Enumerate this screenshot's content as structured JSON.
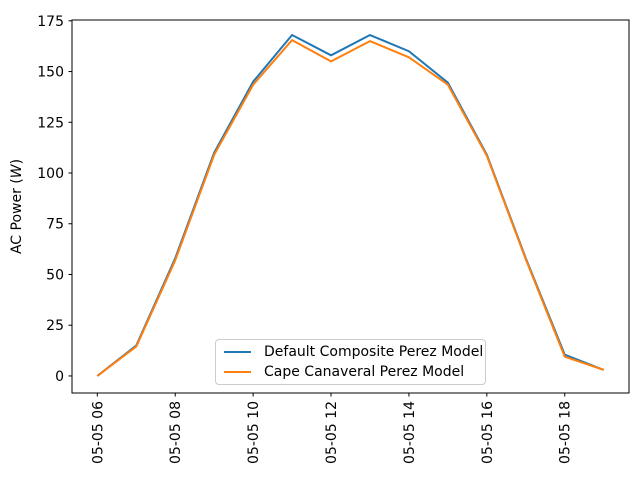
{
  "figure": {
    "background": "#ffffff",
    "ylabel": {
      "prefix": "AC Power (",
      "math": "W",
      "suffix": ")"
    }
  },
  "legend": {
    "items": [
      {
        "label": "Default Composite Perez Model",
        "color": "#1f77b4"
      },
      {
        "label": "Cape Canaveral Perez Model",
        "color": "#ff7f0e"
      }
    ]
  },
  "chart_data": {
    "type": "line",
    "title": "",
    "xlabel": "",
    "ylabel": "AC Power (W)",
    "grid": false,
    "legend_position": "lower center (inside axes)",
    "x_hours": [
      6,
      7,
      8,
      9,
      10,
      11,
      12,
      13,
      14,
      15,
      16,
      17,
      18,
      19
    ],
    "series": [
      {
        "name": "Default Composite Perez Model",
        "color": "#1f77b4",
        "values": [
          0,
          15,
          58,
          110,
          145,
          168,
          158,
          168,
          160,
          144.5,
          109,
          58,
          10.5,
          3
        ]
      },
      {
        "name": "Cape Canaveral Perez Model",
        "color": "#ff7f0e",
        "values": [
          0,
          14.5,
          57,
          109,
          143.5,
          165.5,
          155,
          165,
          157,
          143.5,
          108.5,
          57.5,
          9.5,
          3
        ]
      }
    ],
    "yticks": [
      0,
      25,
      50,
      75,
      100,
      125,
      150,
      175
    ],
    "xticks": [
      {
        "hour": 6,
        "label": "05-05 06"
      },
      {
        "hour": 8,
        "label": "05-05 08"
      },
      {
        "hour": 10,
        "label": "05-05 10"
      },
      {
        "hour": 12,
        "label": "05-05 12"
      },
      {
        "hour": 14,
        "label": "05-05 14"
      },
      {
        "hour": 16,
        "label": "05-05 16"
      },
      {
        "hour": 18,
        "label": "05-05 18"
      }
    ],
    "ylim": [
      -8.4,
      175.4
    ],
    "xlim_hours": [
      5.35,
      19.65
    ]
  }
}
